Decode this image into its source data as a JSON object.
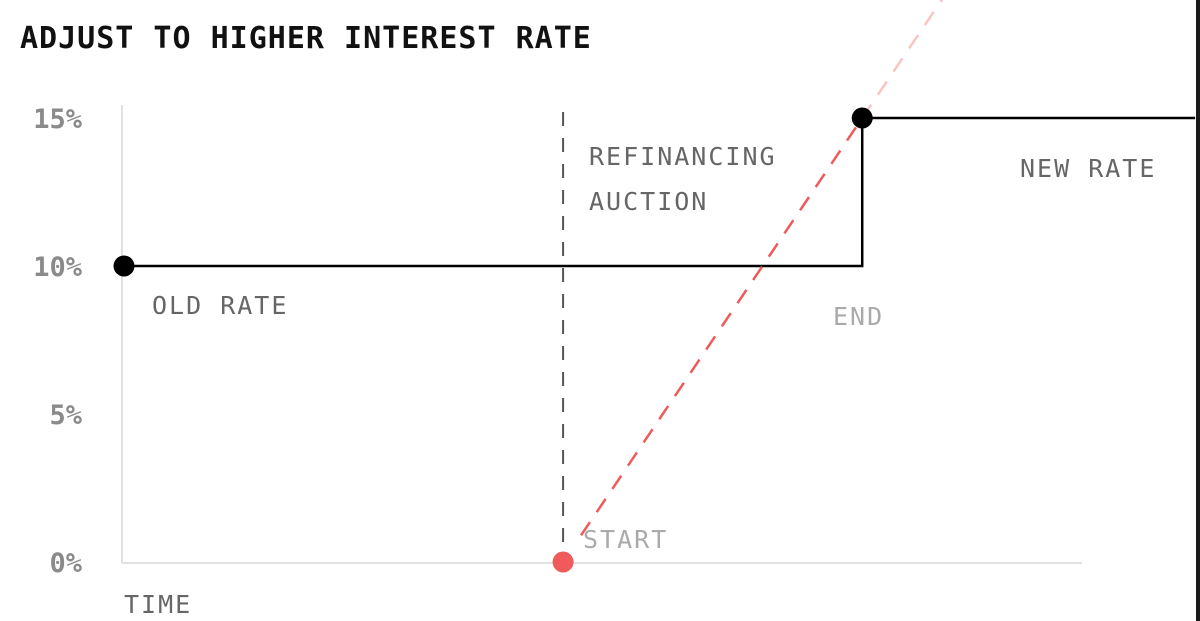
{
  "chart_data": {
    "type": "line",
    "title": "ADJUST TO HIGHER INTEREST RATE",
    "xlabel": "TIME",
    "ylabel": "",
    "ylim": [
      0,
      15
    ],
    "y_ticks": [
      0,
      5,
      10,
      15
    ],
    "y_tick_labels": [
      "0%",
      "5%",
      "10%",
      "15%"
    ],
    "grid": false,
    "series": [
      {
        "role": "rate-path",
        "color": "#000000",
        "style": "solid",
        "points": [
          {
            "x": 0,
            "y": 10
          },
          {
            "x": 0.455,
            "y": 10
          },
          {
            "x": 0.765,
            "y": 10
          },
          {
            "x": 0.765,
            "y": 15
          },
          {
            "x": 1.11,
            "y": 15
          }
        ]
      },
      {
        "role": "auction-rate",
        "color": "#f05a5a",
        "style": "dashed",
        "points": [
          {
            "x": 0.455,
            "y": 0
          },
          {
            "x": 0.765,
            "y": 15
          },
          {
            "x": 0.86,
            "y": 19.6
          }
        ]
      }
    ],
    "markers": [
      {
        "name": "old-rate-marker",
        "x": 0,
        "y": 10,
        "color": "#000000"
      },
      {
        "name": "new-rate-marker",
        "x": 0.765,
        "y": 15,
        "color": "#000000"
      },
      {
        "name": "start-marker",
        "x": 0.455,
        "y": 0,
        "color": "#f05a5a"
      }
    ],
    "vlines": [
      {
        "x": 0.455,
        "style": "dashed",
        "color": "#555555"
      }
    ],
    "annotations": [
      {
        "name": "old-rate-label",
        "lines": [
          "OLD RATE"
        ],
        "color": "#666666"
      },
      {
        "name": "refinancing-label",
        "lines": [
          "REFINANCING",
          "AUCTION"
        ],
        "color": "#666666"
      },
      {
        "name": "new-rate-label",
        "lines": [
          "NEW RATE"
        ],
        "color": "#666666"
      },
      {
        "name": "end-label",
        "lines": [
          "END"
        ],
        "color": "#aaaaaa"
      },
      {
        "name": "start-label",
        "lines": [
          "START"
        ],
        "color": "#aaaaaa"
      }
    ]
  }
}
